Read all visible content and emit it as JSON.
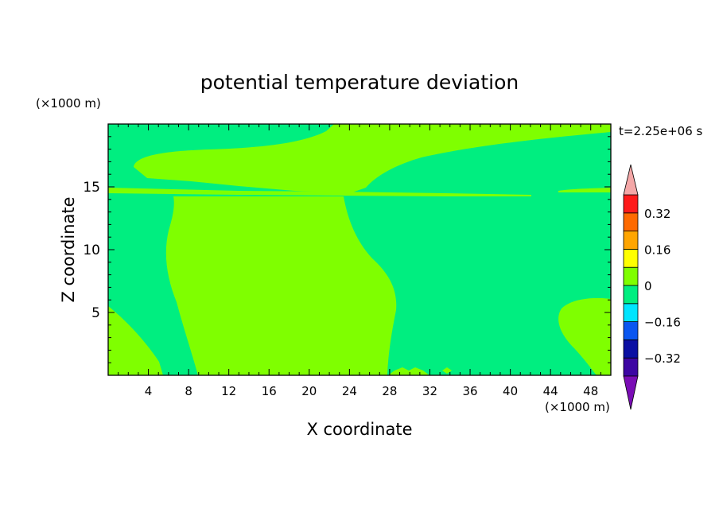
{
  "chart_data": {
    "type": "contour",
    "title": "potential temperature deviation",
    "xlabel": "X coordinate",
    "ylabel": "Z coordinate",
    "x_unit_label": "(×1000 m)",
    "y_unit_label": "(×1000 m)",
    "time_label": "t=2.25e+06 s",
    "xlim": [
      0,
      50
    ],
    "ylim": [
      0,
      20
    ],
    "x_ticks": [
      4,
      8,
      12,
      16,
      20,
      24,
      28,
      32,
      36,
      40,
      44,
      48
    ],
    "y_ticks": [
      5,
      10,
      15
    ],
    "colorbar": {
      "labels": [
        {
          "value": 0.32,
          "text": "0.32"
        },
        {
          "value": 0.16,
          "text": "0.16"
        },
        {
          "value": 0,
          "text": "0"
        },
        {
          "value": -0.16,
          "text": "−0.16"
        },
        {
          "value": -0.32,
          "text": "−0.32"
        }
      ],
      "levels": [
        -0.48,
        -0.4,
        -0.32,
        -0.24,
        -0.16,
        -0.08,
        0,
        0.08,
        0.16,
        0.24,
        0.32,
        0.4,
        0.48
      ],
      "colors": [
        "#7a0db5",
        "#3d06a3",
        "#0b0fa3",
        "#0a56f0",
        "#00e5ff",
        "#00ee80",
        "#7fff00",
        "#ffff00",
        "#ffa500",
        "#ff6a00",
        "#ff1a1a",
        "#f4a7a7"
      ]
    },
    "regions": [
      {
        "level_range": "-0.08 to 0",
        "color": "#00ee80",
        "description_area": "background"
      },
      {
        "level_range": "0 to 0.08",
        "color": "#7fff00",
        "features": [
          "central column x≈6–28 below z≈14.3",
          "upper band z≈16–19.5",
          "lower-left corner",
          "lower-right blob x≈42–49 z≈0–6"
        ]
      }
    ]
  }
}
